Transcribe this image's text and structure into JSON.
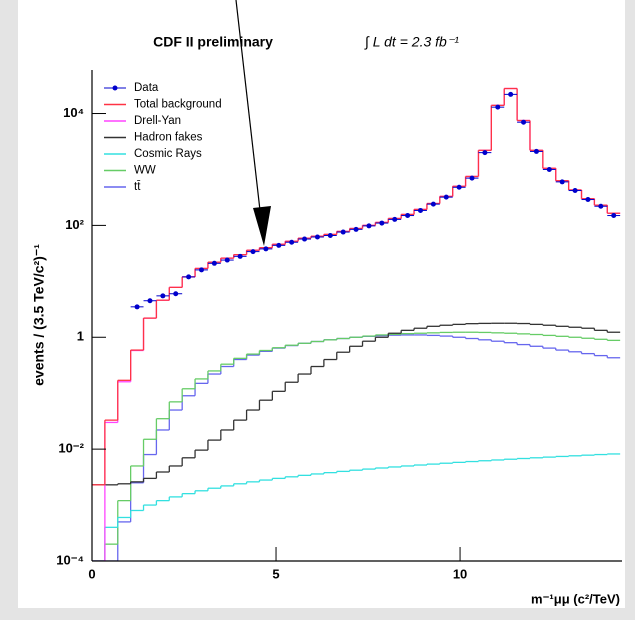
{
  "chart_data": {
    "type": "histogram",
    "title": "CDF II preliminary",
    "annotation": "∫ L dt = 2.3 fb⁻¹",
    "x_label": "m⁻¹μμ (c²/TeV)",
    "y_label": "events / (3.5 TeV/c²)⁻¹",
    "bins": [
      0,
      0.35,
      0.7,
      1.05,
      1.4,
      1.75,
      2.1,
      2.45,
      2.8,
      3.15,
      3.5,
      3.85,
      4.2,
      4.55,
      4.9,
      5.25,
      5.6,
      5.95,
      6.3,
      6.65,
      7,
      7.35,
      7.7,
      8.05,
      8.4,
      8.75,
      9.1,
      9.45,
      9.8,
      10.15,
      10.5,
      10.85,
      11.2,
      11.55,
      11.9,
      12.25,
      12.6,
      12.95,
      13.3,
      13.65,
      14,
      14.35
    ],
    "xlim": [
      0,
      14.4
    ],
    "xticks": [
      0,
      5,
      10
    ],
    "ylim": [
      0.0001,
      60000
    ],
    "yscale": "log",
    "yticks": [
      {
        "value": 0.0001,
        "label": "10⁻⁴"
      },
      {
        "value": 0.01,
        "label": "10⁻²"
      },
      1,
      {
        "value": 100,
        "label": "10²"
      },
      {
        "value": 10000,
        "label": "10⁴"
      }
    ],
    "legend": "top-left",
    "series": [
      {
        "name": "Data",
        "color": "#0000cc",
        "style": "points",
        "values": [
          null,
          null,
          null,
          3.5,
          4.5,
          5.5,
          6,
          12,
          16,
          21,
          24,
          28,
          34,
          38,
          44,
          50,
          57,
          62,
          66,
          76,
          85,
          98,
          110,
          128,
          150,
          185,
          240,
          320,
          480,
          700,
          2000,
          13000,
          22000,
          7000,
          2100,
          1000,
          600,
          420,
          290,
          220,
          150
        ]
      },
      {
        "name": "Total background",
        "color": "#ff3344",
        "style": "step",
        "values": [
          0.0023,
          0.033,
          0.17,
          0.59,
          2.2,
          4.6,
          7.8,
          12,
          17,
          22,
          26,
          30,
          36,
          40,
          46,
          52,
          59,
          64,
          69,
          78,
          88,
          100,
          113,
          133,
          157,
          193,
          246,
          330,
          500,
          750,
          2200,
          14000,
          28000,
          7500,
          2200,
          1050,
          630,
          430,
          300,
          230,
          165
        ]
      },
      {
        "name": "Drell-Yan",
        "color": "#ff44ff",
        "style": "step",
        "values": [
          0.0001,
          0.03,
          0.16,
          0.58,
          2.2,
          4.6,
          7.8,
          12,
          17,
          22,
          26,
          30,
          36,
          40,
          46,
          52,
          59,
          64,
          69,
          78,
          88,
          100,
          113,
          133,
          157,
          193,
          246,
          330,
          500,
          750,
          2200,
          14000,
          28000,
          7500,
          2200,
          1050,
          630,
          430,
          300,
          230,
          165
        ]
      },
      {
        "name": "Hadron fakes",
        "color": "#333333",
        "style": "step",
        "values": [
          0.0023,
          0.0023,
          0.0024,
          0.0026,
          0.003,
          0.0039,
          0.005,
          0.007,
          0.0096,
          0.0145,
          0.022,
          0.033,
          0.05,
          0.075,
          0.108,
          0.157,
          0.22,
          0.3,
          0.4,
          0.54,
          0.69,
          0.85,
          1,
          1.18,
          1.33,
          1.45,
          1.57,
          1.64,
          1.7,
          1.75,
          1.77,
          1.78,
          1.78,
          1.76,
          1.7,
          1.64,
          1.57,
          1.51,
          1.45,
          1.33,
          1.23
        ]
      },
      {
        "name": "Cosmic Rays",
        "color": "#33e0e0",
        "style": "step",
        "values": [
          0.0001,
          0.0004,
          0.0006,
          0.0008,
          0.001,
          0.0012,
          0.0014,
          0.0016,
          0.0018,
          0.002,
          0.0022,
          0.0024,
          0.0026,
          0.0028,
          0.003,
          0.0032,
          0.0034,
          0.0036,
          0.0038,
          0.004,
          0.0042,
          0.0044,
          0.0046,
          0.0048,
          0.005,
          0.0052,
          0.0054,
          0.0056,
          0.0058,
          0.006,
          0.0062,
          0.0064,
          0.0066,
          0.0068,
          0.007,
          0.0072,
          0.0074,
          0.0076,
          0.0078,
          0.008,
          0.0082
        ]
      },
      {
        "name": "WW",
        "color": "#66cc66",
        "style": "step",
        "values": [
          0.0001,
          0.0002,
          0.0012,
          0.005,
          0.015,
          0.035,
          0.07,
          0.12,
          0.18,
          0.25,
          0.33,
          0.42,
          0.5,
          0.58,
          0.65,
          0.72,
          0.78,
          0.84,
          0.9,
          0.95,
          1,
          1.05,
          1.1,
          1.13,
          1.16,
          1.18,
          1.2,
          1.22,
          1.23,
          1.23,
          1.22,
          1.2,
          1.18,
          1.15,
          1.12,
          1.08,
          1.04,
          1,
          0.96,
          0.92,
          0.88
        ]
      },
      {
        "name": "tt̄",
        "color": "#6666ee",
        "style": "step",
        "values": [
          0.0001,
          0.0001,
          0.0005,
          0.0025,
          0.008,
          0.022,
          0.05,
          0.09,
          0.15,
          0.22,
          0.3,
          0.4,
          0.48,
          0.56,
          0.64,
          0.71,
          0.78,
          0.84,
          0.9,
          0.95,
          1,
          1.04,
          1.07,
          1.09,
          1.1,
          1.1,
          1.08,
          1.05,
          1,
          0.95,
          0.9,
          0.85,
          0.8,
          0.74,
          0.69,
          0.64,
          0.59,
          0.55,
          0.51,
          0.47,
          0.43
        ]
      }
    ]
  }
}
